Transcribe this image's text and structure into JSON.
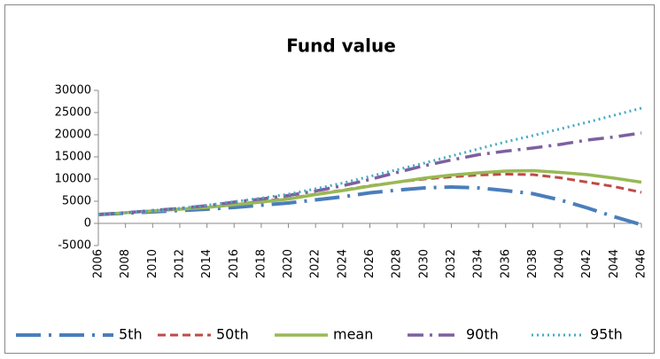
{
  "chart_data": {
    "type": "line",
    "title": "Fund value",
    "x": [
      2006,
      2008,
      2010,
      2012,
      2014,
      2016,
      2018,
      2020,
      2022,
      2024,
      2026,
      2028,
      2030,
      2032,
      2034,
      2036,
      2038,
      2040,
      2042,
      2044,
      2046
    ],
    "xlim": [
      2006,
      2046
    ],
    "xticks": [
      2006,
      2008,
      2010,
      2012,
      2014,
      2016,
      2018,
      2020,
      2022,
      2024,
      2026,
      2028,
      2030,
      2032,
      2034,
      2036,
      2038,
      2040,
      2042,
      2044,
      2046
    ],
    "ylim": [
      -5000,
      30000
    ],
    "yticks": [
      -5000,
      0,
      5000,
      10000,
      15000,
      20000,
      25000,
      30000
    ],
    "grid": false,
    "legend": "bottom",
    "series": [
      {
        "name": "5th",
        "color": "#4a7ebb",
        "dash": "long-dash-dot",
        "values": [
          2000,
          2300,
          2600,
          2900,
          3200,
          3600,
          4100,
          4600,
          5300,
          6000,
          6900,
          7500,
          8000,
          8200,
          8000,
          7400,
          6700,
          5300,
          3500,
          1500,
          -300
        ]
      },
      {
        "name": "50th",
        "color": "#be4b48",
        "dash": "dash",
        "values": [
          2000,
          2400,
          2800,
          3200,
          3600,
          4200,
          5000,
          5600,
          6600,
          7500,
          8500,
          9300,
          10000,
          10500,
          10900,
          11100,
          11000,
          10300,
          9300,
          8300,
          7000
        ]
      },
      {
        "name": "mean",
        "color": "#98b954",
        "dash": "solid",
        "values": [
          2000,
          2400,
          2800,
          3200,
          3600,
          4200,
          4800,
          5500,
          6500,
          7400,
          8400,
          9300,
          10200,
          10900,
          11400,
          11800,
          11900,
          11500,
          11000,
          10200,
          9300
        ]
      },
      {
        "name": "90th",
        "color": "#7d60a0",
        "dash": "dash-dot",
        "values": [
          2000,
          2400,
          2900,
          3400,
          4000,
          4800,
          5500,
          6300,
          7300,
          8500,
          9900,
          11500,
          13000,
          14300,
          15500,
          16300,
          17000,
          17800,
          18800,
          19500,
          20400
        ]
      },
      {
        "name": "95th",
        "color": "#46aac5",
        "dash": "dot",
        "values": [
          2000,
          2400,
          2900,
          3400,
          4100,
          4900,
          5700,
          6600,
          7800,
          9100,
          10600,
          12100,
          13600,
          15200,
          16800,
          18400,
          19800,
          21300,
          22800,
          24400,
          26000
        ]
      }
    ]
  }
}
